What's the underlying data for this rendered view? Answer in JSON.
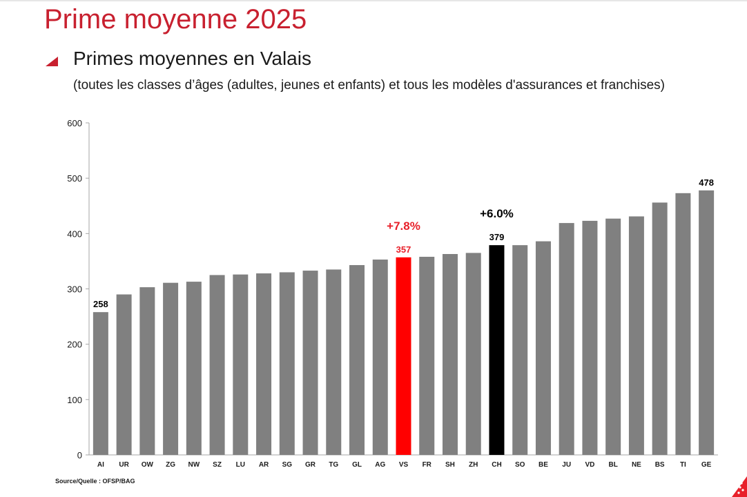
{
  "slide": {
    "title": "Prime moyenne 2025",
    "subtitle": "Primes moyennes en Valais",
    "note": "(toutes les classes d’âges (adultes, jeunes et enfants) et tous les modèles d'assurances et franchises)",
    "source": "Source/Quelle : OFSP/BAG"
  },
  "colors": {
    "title": "#c8202f",
    "bar": "#808080",
    "highlight_vs": "#ff0000",
    "highlight_ch": "#000000",
    "annotation_vs": "#e8202a",
    "annotation_ch": "#000000"
  },
  "chart_data": {
    "type": "bar",
    "title": "",
    "xlabel": "",
    "ylabel": "",
    "ylim": [
      0,
      600
    ],
    "yticks": [
      0,
      100,
      200,
      300,
      400,
      500,
      600
    ],
    "grid": false,
    "categories": [
      "AI",
      "UR",
      "OW",
      "ZG",
      "NW",
      "SZ",
      "LU",
      "AR",
      "SG",
      "GR",
      "TG",
      "GL",
      "AG",
      "VS",
      "FR",
      "SH",
      "ZH",
      "CH",
      "SO",
      "BE",
      "JU",
      "VD",
      "BL",
      "NE",
      "BS",
      "TI",
      "GE"
    ],
    "values": [
      258,
      290,
      303,
      311,
      313,
      325,
      326,
      328,
      330,
      333,
      335,
      343,
      353,
      357,
      358,
      363,
      365,
      379,
      379,
      386,
      419,
      423,
      427,
      431,
      456,
      473,
      478
    ],
    "bar_colors": {
      "VS": "highlight_vs",
      "CH": "highlight_ch"
    },
    "data_labels": [
      {
        "category": "AI",
        "text": "258",
        "color": "#000000"
      },
      {
        "category": "VS",
        "text": "357",
        "color": "#e8202a"
      },
      {
        "category": "CH",
        "text": "379",
        "color": "#000000"
      },
      {
        "category": "GE",
        "text": "478",
        "color": "#000000"
      }
    ],
    "annotations": [
      {
        "category": "VS",
        "text": "+7.8%",
        "color": "#e8202a"
      },
      {
        "category": "CH",
        "text": "+6.0%",
        "color": "#000000"
      }
    ]
  }
}
